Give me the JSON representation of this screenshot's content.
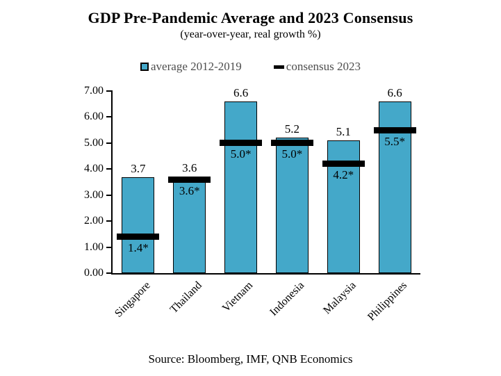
{
  "page": {
    "title": "GDP Pre-Pandemic Average and 2023 Consensus",
    "subtitle": "(year-over-year, real growth %)",
    "source": "Source: Bloomberg, IMF, QNB Economics"
  },
  "legend": {
    "items": [
      {
        "label": "average 2012-2019",
        "marker": "square"
      },
      {
        "label": "consensus 2023",
        "marker": "dash"
      }
    ]
  },
  "colors": {
    "bar_fill": "#44A8C9",
    "bar_border": "#000000",
    "consensus_marker": "#000000",
    "text": "#000000",
    "legend_text": "#4d4d4d",
    "background": "#ffffff"
  },
  "chart_data": {
    "type": "bar",
    "title": "GDP Pre-Pandemic Average and 2023 Consensus",
    "subtitle": "(year-over-year, real growth %)",
    "categories": [
      "Singapore",
      "Thailand",
      "Vietnam",
      "Indonesia",
      "Malaysia",
      "Philippines"
    ],
    "series": [
      {
        "name": "average 2012-2019",
        "type": "bar",
        "values": [
          3.7,
          3.6,
          6.6,
          5.2,
          5.1,
          6.6
        ],
        "data_labels": [
          "3.7",
          "3.6",
          "6.6",
          "5.2",
          "5.1",
          "6.6"
        ]
      },
      {
        "name": "consensus 2023",
        "type": "dash-marker",
        "values": [
          1.4,
          3.6,
          5.0,
          5.0,
          4.2,
          5.5
        ],
        "data_labels": [
          "1.4*",
          "3.6*",
          "5.0*",
          "5.0*",
          "4.2*",
          "5.5*"
        ]
      }
    ],
    "xlabel": "",
    "ylabel": "",
    "ylim": [
      0,
      7
    ],
    "ytick_step": 1.0,
    "ytick_labels": [
      "0.00",
      "1.00",
      "2.00",
      "3.00",
      "4.00",
      "5.00",
      "6.00",
      "7.00"
    ],
    "grid": false,
    "legend_position": "top-center"
  }
}
